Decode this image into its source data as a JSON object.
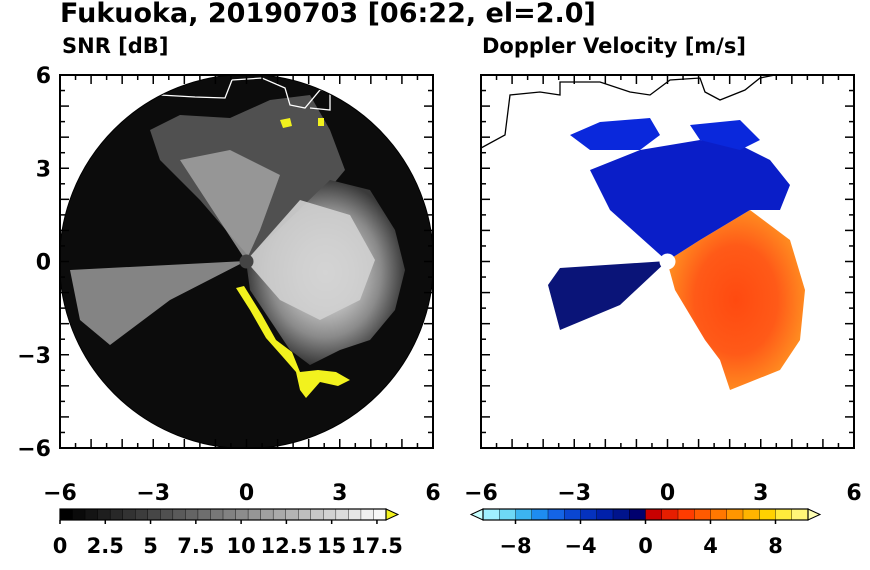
{
  "title": "Fukuoka, 20190703 [06:22, el=2.0]",
  "colors": {
    "frame": "#000000",
    "snr_highlight": "#f2f21e",
    "coast": "#000000"
  },
  "chart_data": [
    {
      "type": "heatmap",
      "title": "SNR [dB]",
      "xlim": [
        -6,
        6
      ],
      "ylim": [
        -6,
        6
      ],
      "xticks": [
        "-6",
        "-3",
        "0",
        "3",
        "6"
      ],
      "yticks": [
        "6",
        "3",
        "0",
        "-3",
        "-6"
      ],
      "colorbar": {
        "ticks": [
          "0",
          "2.5",
          "5",
          "7.5",
          "10",
          "12.5",
          "15",
          "17.5"
        ],
        "range": [
          0,
          18
        ],
        "colors": [
          "#000000",
          "#0a0a0a",
          "#141414",
          "#1e1e1e",
          "#282828",
          "#323232",
          "#3c3c3c",
          "#464646",
          "#505050",
          "#5a5a5a",
          "#646464",
          "#6e6e6e",
          "#787878",
          "#828282",
          "#8c8c8c",
          "#969696",
          "#a0a0a0",
          "#aaaaaa",
          "#b4b4b4",
          "#bebebe",
          "#c8c8c8",
          "#d2d2d2",
          "#dcdcdc",
          "#e6e6e6",
          "#f0f0f0",
          "#f8f8f8",
          "#f2f21e"
        ]
      }
    },
    {
      "type": "heatmap",
      "title": "Doppler Velocity [m/s]",
      "xlim": [
        -6,
        6
      ],
      "ylim": [
        -6,
        6
      ],
      "xticks": [
        "-6",
        "-3",
        "0",
        "3",
        "6"
      ],
      "yticks": [],
      "colorbar": {
        "ticks": [
          "-8",
          "-4",
          "0",
          "4",
          "8"
        ],
        "range": [
          -10,
          10
        ],
        "colors": [
          "#c8ffff",
          "#a0f0ff",
          "#6ed8f5",
          "#3cb4f0",
          "#1e8cf0",
          "#1464e6",
          "#0a46d2",
          "#0532be",
          "#0020aa",
          "#00148c",
          "#00006e",
          "#c80000",
          "#e61e00",
          "#ff3c00",
          "#ff5a00",
          "#ff7800",
          "#ff9600",
          "#ffb400",
          "#ffd200",
          "#ffeb3c",
          "#fff578",
          "#ffffb4"
        ]
      }
    }
  ]
}
